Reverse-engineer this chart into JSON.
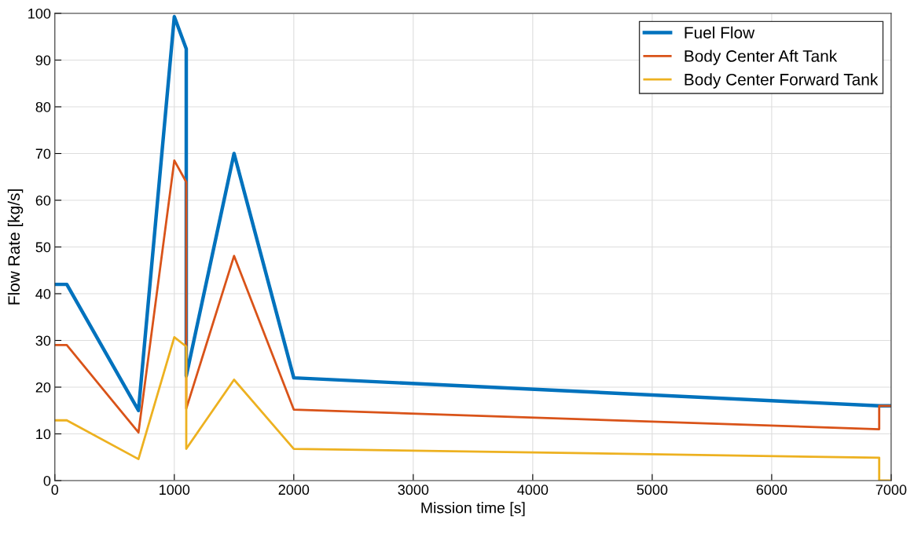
{
  "chart_data": {
    "type": "line",
    "xlabel": "Mission time [s]",
    "ylabel": "Flow Rate [kg/s]",
    "xlim": [
      0,
      7000
    ],
    "xticks": [
      0,
      1000,
      2000,
      3000,
      4000,
      5000,
      6000,
      7000
    ],
    "ylim": [
      0,
      100
    ],
    "yticks": [
      0,
      10,
      20,
      30,
      40,
      50,
      60,
      70,
      80,
      90,
      100
    ],
    "grid": true,
    "legend": "top right",
    "marker": "none",
    "line_style": "solid",
    "series": [
      {
        "name": "Fuel Flow",
        "color": "#0072bd",
        "x": [
          0,
          100,
          700,
          1000,
          1100,
          1100,
          1500,
          2000,
          6900,
          7000
        ],
        "values": [
          42,
          42,
          15,
          99.3,
          92.4,
          22.4,
          70,
          22,
          16,
          16
        ]
      },
      {
        "name": "Body Center Aft Tank",
        "color": "#d95319",
        "x": [
          0,
          100,
          700,
          1000,
          1100,
          1100,
          1500,
          2000,
          6900,
          6900,
          7000
        ],
        "values": [
          29,
          29,
          10.3,
          68.5,
          63.9,
          15.4,
          48.1,
          15.2,
          11,
          16,
          16
        ]
      },
      {
        "name": "Body Center Forward Tank",
        "color": "#edb120",
        "x": [
          0,
          100,
          700,
          1000,
          1100,
          1100,
          1500,
          2000,
          6900,
          6900,
          7000
        ],
        "values": [
          12.9,
          12.9,
          4.6,
          30.7,
          28.7,
          6.8,
          21.6,
          6.8,
          4.9,
          0,
          0
        ]
      }
    ]
  }
}
